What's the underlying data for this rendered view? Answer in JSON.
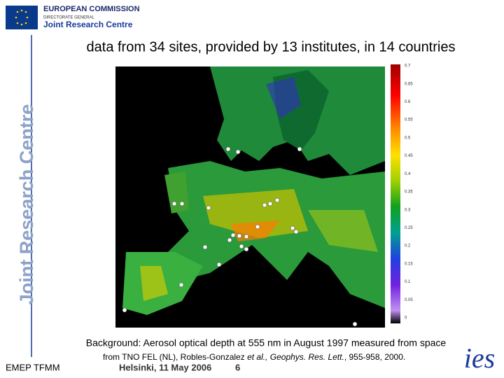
{
  "header": {
    "organisation": "EUROPEAN COMMISSION",
    "directorate": "DIRECTORATE GENERAL",
    "centre": "Joint Research Centre"
  },
  "side_title": "Joint Research Centre",
  "title": "data from 34 sites, provided by 13 institutes, in 14 countries",
  "colorbar": {
    "labels": [
      0.7,
      0.65,
      0.6,
      0.55,
      0.5,
      0.45,
      0.4,
      0.35,
      0.3,
      0.25,
      0.2,
      0.15,
      0.1,
      0.05,
      0
    ]
  },
  "caption": "Background: Aerosol optical depth at 555 nm in August 1997 measured from space",
  "source": {
    "start": "from TNO FEL (NL), Robles-Gonzalez ",
    "authors_etal": "et al.,",
    "journal": " Geophys. Res. Lett.",
    "end": ", 955-958, 2000."
  },
  "footer": {
    "left": "EMEP TFMM",
    "event": "Helsinki, 11 May 2006",
    "page": "6"
  },
  "logo": "ies"
}
